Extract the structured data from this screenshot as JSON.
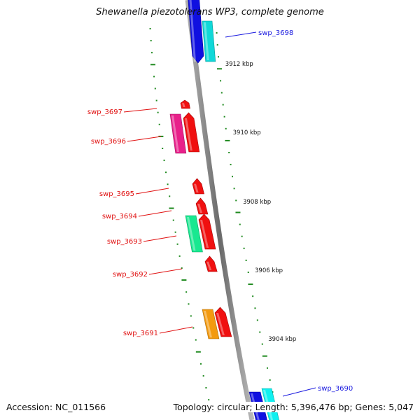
{
  "title": "Shewanella piezotolerans WP3, complete genome",
  "accession": "Accession: NC_011566",
  "summary": "Topology: circular; Length: 5,396,476 bp; Genes: 5,047",
  "scale_labels": [
    "3912 kbp",
    "3910 kbp",
    "3908 kbp",
    "3906 kbp",
    "3904 kbp"
  ],
  "colors": {
    "backbone": "#8a8a8a",
    "ticks": "#1f8a1f",
    "forward_label": "#1a1adf",
    "reverse_label": "#e01010"
  },
  "genes": [
    {
      "label": "swp_3698",
      "label_color": "#1a1adf"
    },
    {
      "label": "swp_3697",
      "label_color": "#e01010"
    },
    {
      "label": "swp_3696",
      "label_color": "#e01010"
    },
    {
      "label": "swp_3695",
      "label_color": "#e01010"
    },
    {
      "label": "swp_3694",
      "label_color": "#e01010"
    },
    {
      "label": "swp_3693",
      "label_color": "#e01010"
    },
    {
      "label": "swp_3692",
      "label_color": "#e01010"
    },
    {
      "label": "swp_3691",
      "label_color": "#e01010"
    },
    {
      "label": "swp_3690",
      "label_color": "#1a1adf"
    }
  ],
  "features": [
    {
      "name": "swp_3698-blue",
      "color": "#1010e0"
    },
    {
      "name": "swp_3698-cyan",
      "color": "#10d8d8"
    },
    {
      "name": "swp_3697",
      "color": "#f01010"
    },
    {
      "name": "swp_3696-red",
      "color": "#f01010"
    },
    {
      "name": "swp_3696-magenta",
      "color": "#e8208a"
    },
    {
      "name": "swp_3695",
      "color": "#f01010"
    },
    {
      "name": "swp_3694",
      "color": "#f01010"
    },
    {
      "name": "swp_3693-red",
      "color": "#f01010"
    },
    {
      "name": "swp_3693-green",
      "color": "#18e890"
    },
    {
      "name": "swp_3692",
      "color": "#f01010"
    },
    {
      "name": "swp_3691-red",
      "color": "#f01010"
    },
    {
      "name": "swp_3691-orange",
      "color": "#f39a10"
    },
    {
      "name": "swp_3690-blue",
      "color": "#1010e0"
    },
    {
      "name": "swp_3690-cyan",
      "color": "#10f0f0"
    }
  ]
}
